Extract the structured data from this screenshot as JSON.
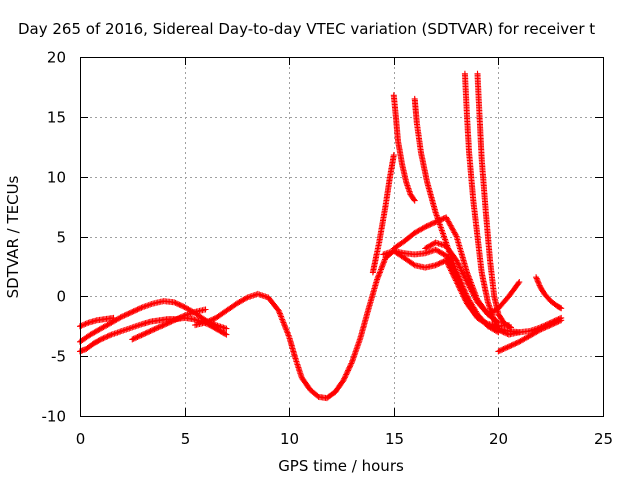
{
  "chart_data": {
    "type": "scatter",
    "title": "Day 265 of 2016, Sidereal Day-to-day VTEC variation (SDTVAR) for receiver t",
    "xlabel": "GPS time / hours",
    "ylabel": "SDTVAR / TECUs",
    "xlim": [
      0,
      25
    ],
    "ylim": [
      -10,
      20
    ],
    "x_ticks": [
      0,
      5,
      10,
      15,
      20,
      25
    ],
    "y_ticks": [
      -10,
      -5,
      0,
      5,
      10,
      15,
      20
    ],
    "grid": true,
    "marker": "plus",
    "color": "#ff0000",
    "series": [
      {
        "x": [
          0.0,
          0.3,
          0.6,
          1.0,
          1.5,
          2.0,
          2.5,
          3.0,
          3.4,
          3.8,
          4.2,
          4.6,
          5.0,
          5.4,
          5.8,
          6.2,
          6.6,
          7.0
        ],
        "y": [
          -4.6,
          -4.4,
          -4.0,
          -3.6,
          -3.2,
          -2.9,
          -2.6,
          -2.3,
          -2.1,
          -2.0,
          -1.9,
          -1.9,
          -1.8,
          -1.9,
          -2.1,
          -2.4,
          -2.8,
          -3.2
        ]
      },
      {
        "x": [
          0.0,
          0.5,
          1.0,
          1.5,
          2.0,
          2.5,
          3.0,
          3.5,
          4.0,
          4.5,
          5.0,
          5.5,
          6.0,
          6.5,
          7.0
        ],
        "y": [
          -3.8,
          -3.2,
          -2.7,
          -2.2,
          -1.7,
          -1.3,
          -0.9,
          -0.6,
          -0.4,
          -0.5,
          -0.9,
          -1.4,
          -2.0,
          -2.4,
          -2.7
        ]
      },
      {
        "x": [
          0.0,
          0.4,
          0.8,
          1.2,
          1.6
        ],
        "y": [
          -2.5,
          -2.2,
          -2.0,
          -1.9,
          -1.8
        ]
      },
      {
        "x": [
          2.5,
          3.0,
          3.5,
          4.0,
          4.5,
          5.0,
          5.5,
          6.0
        ],
        "y": [
          -3.6,
          -3.2,
          -2.8,
          -2.4,
          -2.0,
          -1.6,
          -1.3,
          -1.1
        ]
      },
      {
        "x": [
          5.5,
          6.0,
          6.5,
          7.0,
          7.5,
          8.0,
          8.5,
          9.0,
          9.5,
          10.0,
          10.3,
          10.6,
          11.0,
          11.4,
          11.8,
          12.2,
          12.6,
          13.0,
          13.4,
          13.8,
          14.2,
          14.6,
          15.0,
          15.5,
          16.0,
          16.5,
          17.0,
          17.5,
          18.0,
          18.5,
          19.0,
          19.5,
          20.0,
          20.5,
          21.0,
          21.5,
          22.0,
          22.5,
          23.0
        ],
        "y": [
          -2.4,
          -2.2,
          -1.8,
          -1.2,
          -0.6,
          -0.1,
          0.2,
          -0.1,
          -1.2,
          -3.4,
          -5.2,
          -6.8,
          -7.8,
          -8.4,
          -8.5,
          -8.0,
          -7.0,
          -5.5,
          -3.5,
          -1.0,
          1.4,
          3.2,
          3.8,
          3.6,
          3.5,
          3.6,
          3.9,
          3.4,
          1.8,
          -0.4,
          -1.8,
          -2.4,
          -2.7,
          -2.9,
          -3.0,
          -2.9,
          -2.6,
          -2.2,
          -1.8
        ]
      },
      {
        "x": [
          14.0,
          14.3,
          14.6,
          14.8,
          15.0
        ],
        "y": [
          2.0,
          4.5,
          7.5,
          9.8,
          11.8
        ]
      },
      {
        "x": [
          15.0,
          15.1,
          15.2,
          15.4,
          15.6,
          15.8,
          16.0
        ],
        "y": [
          16.8,
          15.0,
          13.0,
          11.0,
          9.5,
          8.5,
          8.0
        ]
      },
      {
        "x": [
          16.0,
          16.1,
          16.3,
          16.6,
          17.0,
          17.5,
          18.0,
          18.5,
          19.0,
          19.5,
          20.0
        ],
        "y": [
          16.5,
          14.5,
          12.0,
          9.5,
          7.0,
          4.5,
          2.0,
          0.0,
          -1.5,
          -2.5,
          -3.0
        ]
      },
      {
        "x": [
          18.4,
          18.5,
          18.6,
          18.8,
          19.0,
          19.2,
          19.5,
          19.8,
          20.0,
          20.5,
          21.0
        ],
        "y": [
          18.6,
          15.0,
          12.0,
          8.0,
          5.0,
          2.0,
          -0.5,
          -2.0,
          -2.8,
          -3.2,
          -3.0
        ]
      },
      {
        "x": [
          19.0,
          19.1,
          19.2,
          19.4,
          19.6,
          19.8,
          20.0,
          20.3,
          20.6
        ],
        "y": [
          18.6,
          15.0,
          11.5,
          7.0,
          3.0,
          0.0,
          -1.5,
          -2.3,
          -2.6
        ]
      },
      {
        "x": [
          15.0,
          15.5,
          16.0,
          16.5,
          17.0,
          17.5,
          18.0,
          18.5,
          19.0,
          19.5,
          20.0
        ],
        "y": [
          4.0,
          4.6,
          5.3,
          5.8,
          6.2,
          6.6,
          5.0,
          2.0,
          -0.3,
          -1.5,
          -2.2
        ]
      },
      {
        "x": [
          16.5,
          17.0,
          17.5,
          18.0,
          18.5,
          19.0,
          19.5,
          20.0,
          20.5,
          21.0
        ],
        "y": [
          4.0,
          4.5,
          4.2,
          3.0,
          1.2,
          -0.5,
          -1.5,
          -1.0,
          0.0,
          1.2
        ]
      },
      {
        "x": [
          20.0,
          20.5,
          21.0,
          21.5,
          22.0,
          22.5,
          23.0
        ],
        "y": [
          -4.6,
          -4.2,
          -3.8,
          -3.3,
          -2.8,
          -2.4,
          -2.0
        ]
      },
      {
        "x": [
          21.8,
          22.0,
          22.2,
          22.5,
          22.8,
          23.0
        ],
        "y": [
          1.6,
          0.8,
          0.2,
          -0.4,
          -0.8,
          -1.0
        ]
      },
      {
        "x": [
          14.5,
          15.0,
          15.5,
          16.0,
          16.5,
          17.0,
          17.5,
          18.0,
          18.5,
          19.0,
          19.5,
          20.0,
          20.5
        ],
        "y": [
          3.5,
          3.8,
          3.2,
          2.6,
          2.4,
          2.6,
          3.0,
          1.2,
          -0.6,
          -1.8,
          -2.3,
          -2.5,
          -2.4
        ]
      }
    ]
  }
}
